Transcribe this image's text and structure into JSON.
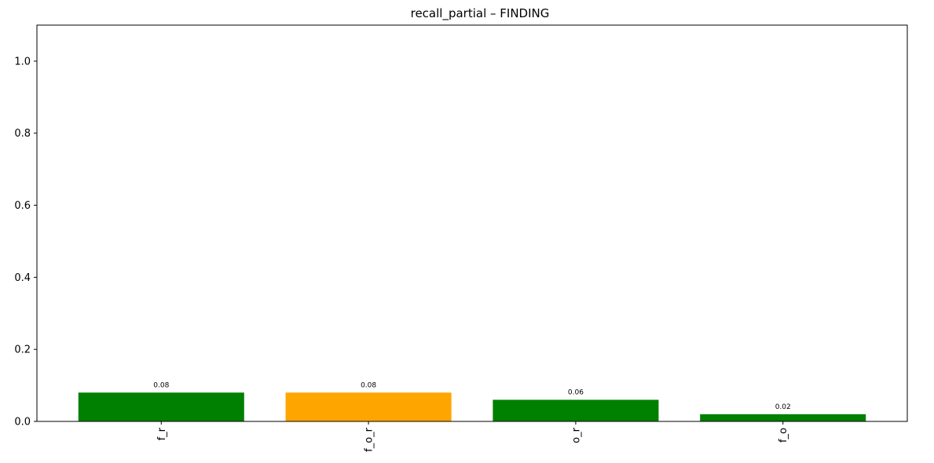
{
  "chart_data": {
    "type": "bar",
    "title": "recall_partial – FINDING",
    "xlabel": "",
    "ylabel": "",
    "categories": [
      "f_r",
      "f_o_r",
      "o_r",
      "f_o"
    ],
    "values": [
      0.08,
      0.08,
      0.06,
      0.02
    ],
    "value_labels": [
      "0.08",
      "0.08",
      "0.06",
      "0.02"
    ],
    "bar_colors": [
      "#008000",
      "#FFA500",
      "#008000",
      "#008000"
    ],
    "ylim": [
      0,
      1.1
    ],
    "yticks": [
      0.0,
      0.2,
      0.4,
      0.6,
      0.8,
      1.0
    ],
    "ytick_labels": [
      "0.0",
      "0.2",
      "0.4",
      "0.6",
      "0.8",
      "1.0"
    ],
    "grid": false,
    "legend": "none",
    "x_tick_rotation": "vertical"
  }
}
